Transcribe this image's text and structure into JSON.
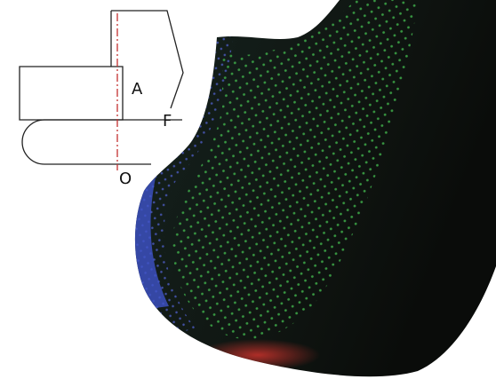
{
  "labels": {
    "a": "A",
    "f": "F",
    "o": "O"
  }
}
